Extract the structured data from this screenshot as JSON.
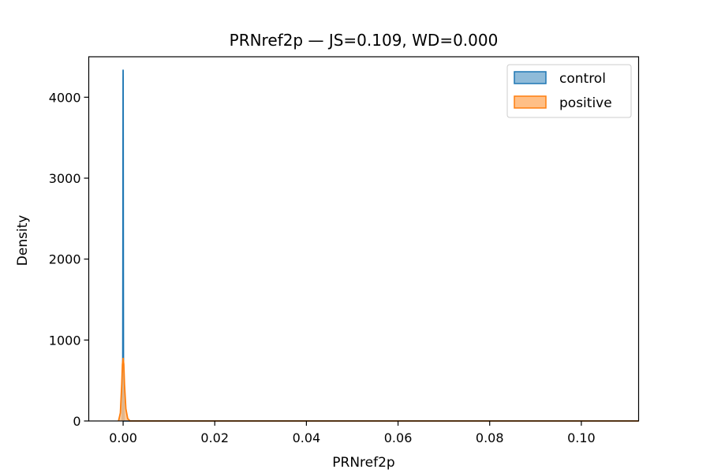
{
  "chart_data": {
    "type": "area",
    "title": "PRNref2p — JS=0.109, WD=0.000",
    "xlabel": "PRNref2p",
    "ylabel": "Density",
    "xlim": [
      -0.0075,
      0.1125
    ],
    "ylim": [
      0,
      4500
    ],
    "xticks": [
      0.0,
      0.02,
      0.04,
      0.06,
      0.08,
      0.1
    ],
    "xtick_labels": [
      "0.00",
      "0.02",
      "0.04",
      "0.06",
      "0.08",
      "0.10"
    ],
    "yticks": [
      0,
      1000,
      2000,
      3000,
      4000
    ],
    "ytick_labels": [
      "0",
      "1000",
      "2000",
      "3000",
      "4000"
    ],
    "grid": false,
    "legend_position": "top-right",
    "series": [
      {
        "name": "control",
        "color": "#1f77b4",
        "fill": "#8fbbd9",
        "points": [
          [
            -0.0002,
            0
          ],
          [
            -8e-05,
            500
          ],
          [
            -4e-05,
            2500
          ],
          [
            -1e-05,
            4200
          ],
          [
            0.0,
            4340
          ],
          [
            1e-05,
            4200
          ],
          [
            4e-05,
            2500
          ],
          [
            8e-05,
            500
          ],
          [
            0.0002,
            0
          ],
          [
            0.1125,
            0
          ]
        ]
      },
      {
        "name": "positive",
        "color": "#ff7f0e",
        "fill": "#ffbf86",
        "points": [
          [
            -0.001,
            0
          ],
          [
            -0.0006,
            100
          ],
          [
            -0.0003,
            450
          ],
          [
            -0.00015,
            700
          ],
          [
            0.0,
            780
          ],
          [
            0.00015,
            700
          ],
          [
            0.0003,
            450
          ],
          [
            0.0006,
            150
          ],
          [
            0.001,
            30
          ],
          [
            0.0015,
            0
          ],
          [
            0.1125,
            0
          ]
        ]
      }
    ]
  }
}
